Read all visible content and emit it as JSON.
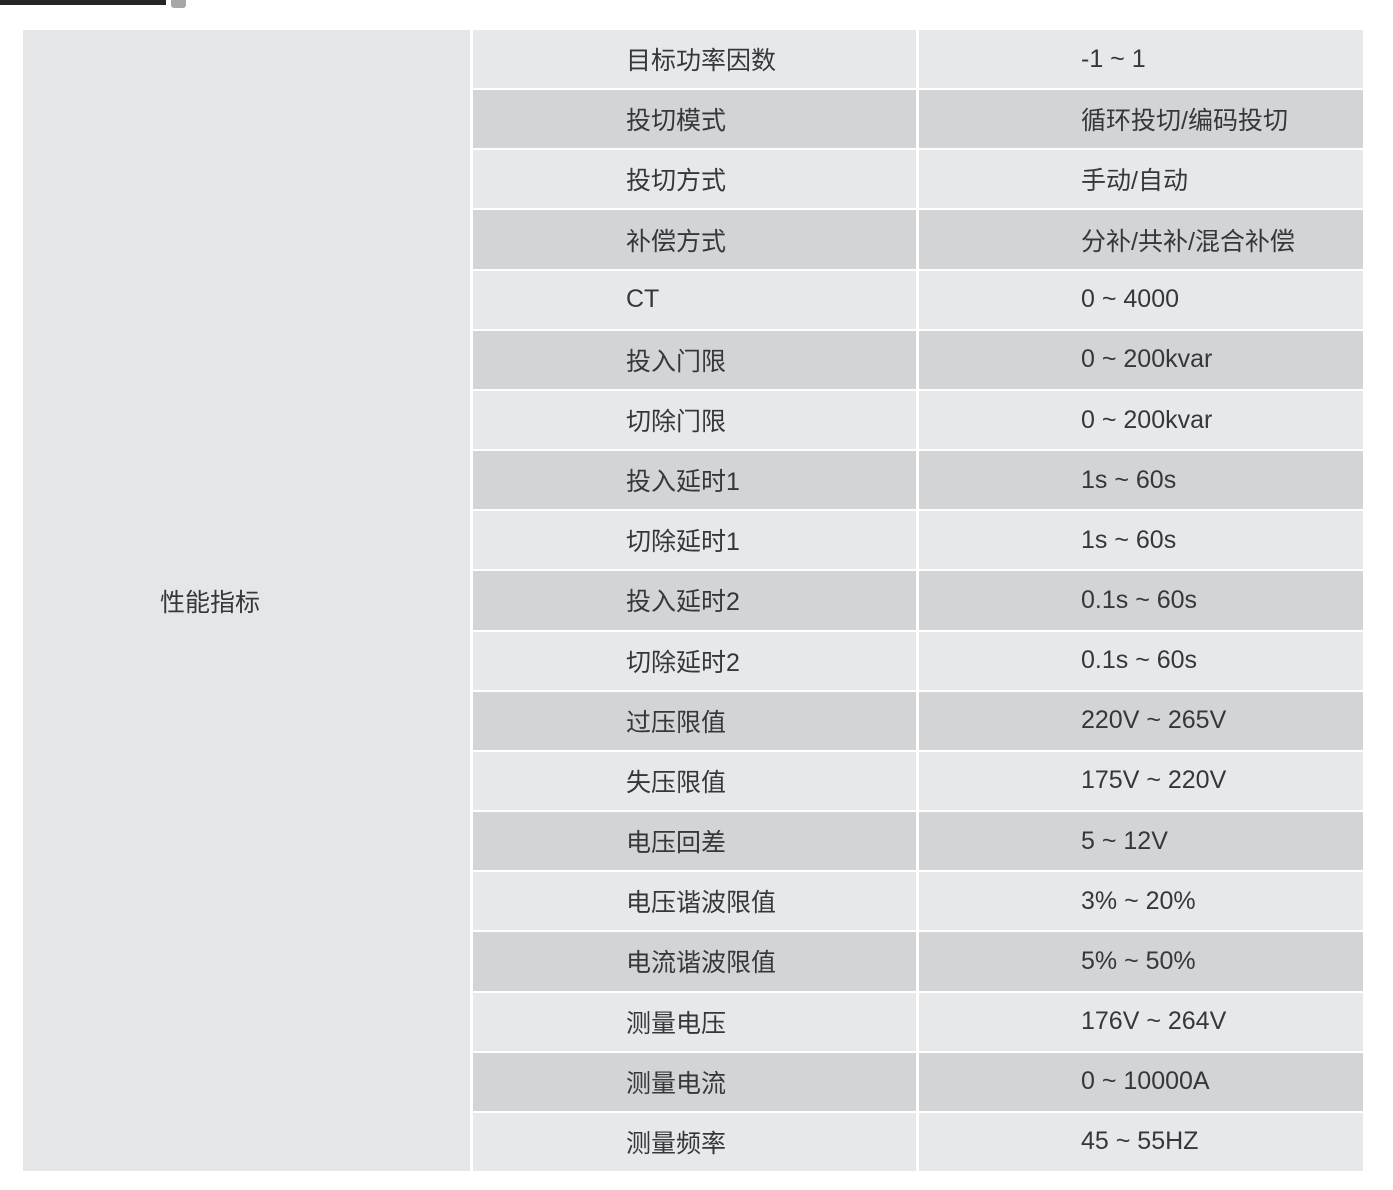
{
  "colors": {
    "row_light": "#e7e8ea",
    "row_dark": "#d2d4d5",
    "category_cell": "#e4e6e7",
    "divider": "#ffffff",
    "text": "#35383b",
    "cropped_top_bar": "#262626"
  },
  "table": {
    "category": "性能指标",
    "rows": [
      {
        "param": "目标功率因数",
        "value": "-1 ~ 1"
      },
      {
        "param": "投切模式",
        "value": "循环投切/编码投切"
      },
      {
        "param": "投切方式",
        "value": "手动/自动"
      },
      {
        "param": "补偿方式",
        "value": "分补/共补/混合补偿"
      },
      {
        "param": "CT",
        "value": "0 ~ 4000"
      },
      {
        "param": "投入门限",
        "value": "0 ~ 200kvar"
      },
      {
        "param": "切除门限",
        "value": "0 ~ 200kvar"
      },
      {
        "param": "投入延时1",
        "value": "1s ~ 60s"
      },
      {
        "param": "切除延时1",
        "value": "1s ~ 60s"
      },
      {
        "param": "投入延时2",
        "value": "0.1s ~ 60s"
      },
      {
        "param": "切除延时2",
        "value": "0.1s ~ 60s"
      },
      {
        "param": "过压限值",
        "value": "220V ~ 265V"
      },
      {
        "param": "失压限值",
        "value": "175V ~ 220V"
      },
      {
        "param": "电压回差",
        "value": "5 ~ 12V"
      },
      {
        "param": "电压谐波限值",
        "value": "3% ~ 20%"
      },
      {
        "param": "电流谐波限值",
        "value": "5% ~ 50%"
      },
      {
        "param": "测量电压",
        "value": "176V ~ 264V"
      },
      {
        "param": "测量电流",
        "value": "0 ~ 10000A"
      },
      {
        "param": "测量频率",
        "value": "45 ~ 55HZ"
      }
    ]
  }
}
